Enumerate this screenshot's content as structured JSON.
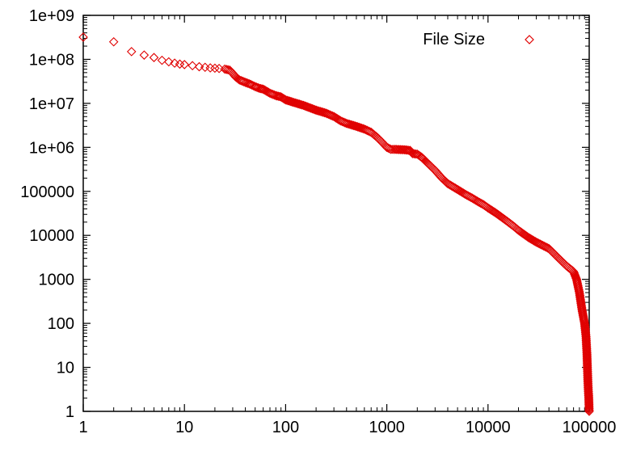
{
  "chart_data": {
    "type": "scatter",
    "title": "",
    "xlabel": "",
    "ylabel": "",
    "x_scale": "log",
    "y_scale": "log",
    "xlim": [
      1,
      100000
    ],
    "ylim": [
      1,
      1000000000
    ],
    "grid": false,
    "legend_position": "top-right",
    "marker": "diamond",
    "color": "#e00000",
    "x_ticks": [
      1,
      10,
      100,
      1000,
      10000,
      100000
    ],
    "x_tick_labels": [
      "1",
      "10",
      "100",
      "1000",
      "10000",
      "100000"
    ],
    "y_ticks": [
      1,
      10,
      100,
      1000,
      10000,
      100000,
      1000000,
      10000000,
      100000000,
      1000000000
    ],
    "y_tick_labels": [
      "1",
      "10",
      "100",
      "1000",
      "10000",
      "100000",
      "1e+06",
      "1e+07",
      "1e+08",
      "1e+09"
    ],
    "series": [
      {
        "name": "File Size",
        "points": [
          [
            1,
            320000000
          ],
          [
            2,
            250000000
          ],
          [
            3,
            150000000
          ],
          [
            4,
            125000000
          ],
          [
            5,
            110000000
          ],
          [
            6,
            95000000
          ],
          [
            7,
            88000000
          ],
          [
            8,
            82000000
          ],
          [
            9,
            78000000
          ],
          [
            10,
            76000000
          ],
          [
            12,
            72000000
          ],
          [
            14,
            68000000
          ],
          [
            16,
            66000000
          ],
          [
            18,
            64000000
          ],
          [
            20,
            63000000
          ],
          [
            22,
            62000000
          ],
          [
            25,
            60000000
          ],
          [
            28,
            57000000
          ],
          [
            30,
            48000000
          ],
          [
            32,
            40000000
          ],
          [
            35,
            34000000
          ],
          [
            40,
            30000000
          ],
          [
            45,
            27000000
          ],
          [
            50,
            24000000
          ],
          [
            55,
            22000000
          ],
          [
            60,
            21000000
          ],
          [
            70,
            17000000
          ],
          [
            80,
            15000000
          ],
          [
            90,
            14000000
          ],
          [
            100,
            12000000
          ],
          [
            120,
            10500000
          ],
          [
            150,
            9000000
          ],
          [
            200,
            7000000
          ],
          [
            250,
            6000000
          ],
          [
            300,
            5000000
          ],
          [
            350,
            4000000
          ],
          [
            400,
            3500000
          ],
          [
            500,
            3000000
          ],
          [
            600,
            2600000
          ],
          [
            700,
            2200000
          ],
          [
            800,
            1700000
          ],
          [
            900,
            1300000
          ],
          [
            1000,
            1000000
          ],
          [
            1100,
            900000
          ],
          [
            1200,
            900000
          ],
          [
            1500,
            880000
          ],
          [
            1700,
            850000
          ],
          [
            1800,
            720000
          ],
          [
            2000,
            700000
          ],
          [
            2200,
            600000
          ],
          [
            2500,
            450000
          ],
          [
            3000,
            300000
          ],
          [
            3500,
            200000
          ],
          [
            4000,
            150000
          ],
          [
            5000,
            110000
          ],
          [
            6000,
            85000
          ],
          [
            7000,
            70000
          ],
          [
            8000,
            58000
          ],
          [
            9000,
            50000
          ],
          [
            10000,
            42000
          ],
          [
            12000,
            32000
          ],
          [
            15000,
            22000
          ],
          [
            18000,
            16000
          ],
          [
            20000,
            13000
          ],
          [
            25000,
            9000
          ],
          [
            30000,
            7000
          ],
          [
            40000,
            5000
          ],
          [
            50000,
            3000
          ],
          [
            60000,
            2000
          ],
          [
            70000,
            1500
          ],
          [
            75000,
            1000
          ],
          [
            80000,
            500
          ],
          [
            85000,
            200
          ],
          [
            90000,
            100
          ],
          [
            93000,
            50
          ],
          [
            95000,
            20
          ],
          [
            96000,
            10
          ],
          [
            97000,
            5
          ],
          [
            98000,
            3
          ],
          [
            99000,
            2
          ],
          [
            100000,
            1
          ]
        ]
      }
    ]
  }
}
